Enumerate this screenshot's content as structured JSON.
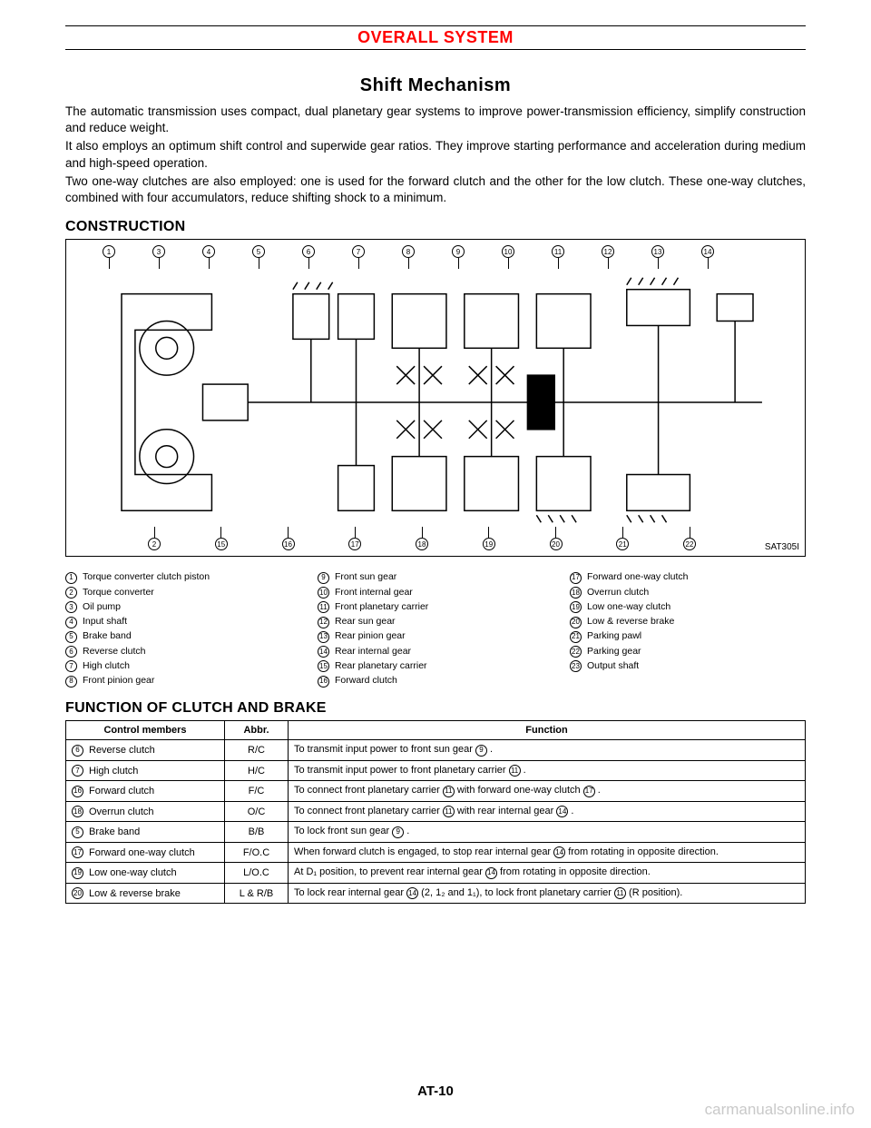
{
  "header": {
    "system_title": "OVERALL SYSTEM"
  },
  "section": {
    "title": "Shift Mechanism",
    "paragraphs": [
      "The automatic transmission uses compact, dual planetary gear systems to improve power-transmission efficiency, simplify construction and reduce weight.",
      "It also employs an optimum shift control and superwide gear ratios. They improve starting performance and acceleration during medium and high-speed operation.",
      "Two one-way clutches are also employed: one is used for the forward clutch and the other for the low clutch. These one-way clutches, combined with four accumulators, reduce shifting shock to a minimum."
    ]
  },
  "construction": {
    "heading": "CONSTRUCTION",
    "diagram_code": "SAT305I",
    "top_callouts": [
      "1",
      "3",
      "4",
      "5",
      "6",
      "7",
      "8",
      "9",
      "10",
      "11",
      "12",
      "13",
      "14"
    ],
    "bottom_callouts": [
      "2",
      "15",
      "16",
      "17",
      "18",
      "19",
      "20",
      "21",
      "22"
    ],
    "legend": {
      "col1": [
        {
          "n": "1",
          "t": "Torque converter clutch piston"
        },
        {
          "n": "2",
          "t": "Torque converter"
        },
        {
          "n": "3",
          "t": "Oil pump"
        },
        {
          "n": "4",
          "t": "Input shaft"
        },
        {
          "n": "5",
          "t": "Brake band"
        },
        {
          "n": "6",
          "t": "Reverse clutch"
        },
        {
          "n": "7",
          "t": "High clutch"
        },
        {
          "n": "8",
          "t": "Front pinion gear"
        }
      ],
      "col2": [
        {
          "n": "9",
          "t": "Front sun gear"
        },
        {
          "n": "10",
          "t": "Front internal gear"
        },
        {
          "n": "11",
          "t": "Front planetary carrier"
        },
        {
          "n": "12",
          "t": "Rear sun gear"
        },
        {
          "n": "13",
          "t": "Rear pinion gear"
        },
        {
          "n": "14",
          "t": "Rear internal gear"
        },
        {
          "n": "15",
          "t": "Rear planetary carrier"
        },
        {
          "n": "16",
          "t": "Forward clutch"
        }
      ],
      "col3": [
        {
          "n": "17",
          "t": "Forward one-way clutch"
        },
        {
          "n": "18",
          "t": "Overrun clutch"
        },
        {
          "n": "19",
          "t": "Low one-way clutch"
        },
        {
          "n": "20",
          "t": "Low & reverse brake"
        },
        {
          "n": "21",
          "t": "Parking pawl"
        },
        {
          "n": "22",
          "t": "Parking gear"
        },
        {
          "n": "23",
          "t": "Output shaft"
        }
      ]
    }
  },
  "function": {
    "heading": "FUNCTION OF CLUTCH AND BRAKE",
    "headers": {
      "cm": "Control members",
      "abbr": "Abbr.",
      "func": "Function"
    },
    "rows": [
      {
        "n": "6",
        "cm": "Reverse clutch",
        "abbr": "R/C",
        "fn_pre": "To transmit input power to front sun gear ",
        "ref": "9",
        "fn_post": " ."
      },
      {
        "n": "7",
        "cm": "High clutch",
        "abbr": "H/C",
        "fn_pre": "To transmit input power to front planetary carrier ",
        "ref": "11",
        "fn_post": " ."
      },
      {
        "n": "16",
        "cm": "Forward clutch",
        "abbr": "F/C",
        "fn_pre": "To connect front planetary carrier ",
        "ref": "11",
        "fn_mid": " with forward one-way clutch ",
        "ref2": "17",
        "fn_post": " ."
      },
      {
        "n": "18",
        "cm": "Overrun clutch",
        "abbr": "O/C",
        "fn_pre": "To connect front planetary carrier ",
        "ref": "11",
        "fn_mid": " with rear internal gear ",
        "ref2": "14",
        "fn_post": " ."
      },
      {
        "n": "5",
        "cm": "Brake band",
        "abbr": "B/B",
        "fn_pre": "To lock front sun gear ",
        "ref": "9",
        "fn_post": " ."
      },
      {
        "n": "17",
        "cm": "Forward one-way clutch",
        "abbr": "F/O.C",
        "fn_pre": "When forward clutch is engaged, to stop rear internal gear ",
        "ref": "14",
        "fn_post": " from rotating in opposite direction."
      },
      {
        "n": "19",
        "cm": "Low one-way clutch",
        "abbr": "L/O.C",
        "fn_pre": "At D₁ position, to prevent rear internal gear ",
        "ref": "14",
        "fn_post": " from rotating in opposite direction."
      },
      {
        "n": "20",
        "cm": "Low & reverse brake",
        "abbr": "L & R/B",
        "fn_pre": "To lock rear internal gear ",
        "ref": "14",
        "fn_mid": " (2, 1₂ and 1₁), to lock front planetary carrier ",
        "ref2": "11",
        "fn_post": " (R position)."
      }
    ]
  },
  "page_number": "AT-10",
  "watermark": "carmanualsonline.info"
}
